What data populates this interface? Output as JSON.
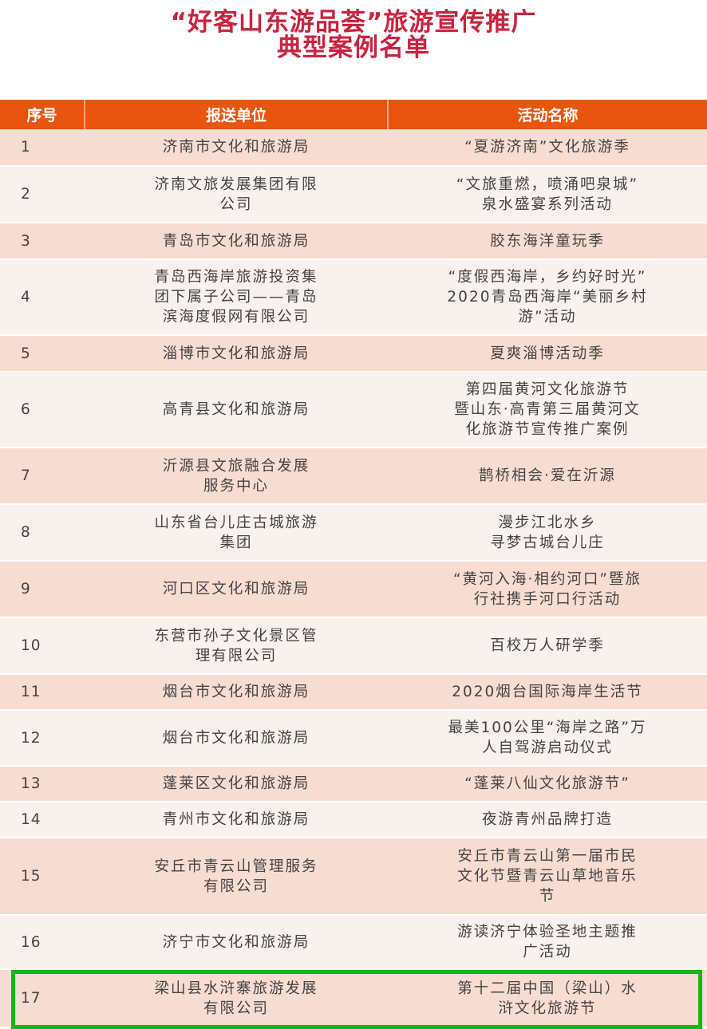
{
  "title_line1": "“好客山东游品荟”旅游宣传推广",
  "title_line2": "典型案例名单",
  "headers": [
    "序号",
    "报送单位",
    "活动名称"
  ],
  "highlight_color": "#18b51b",
  "header_color": "#e8550e",
  "rows": [
    {
      "no": "1",
      "unit": "济南市文化和旅游局",
      "activity": "“夏游济南”文化旅游季"
    },
    {
      "no": "2",
      "unit": "济南文旅发展集团有限\n公司",
      "activity": "“文旅重燃，喷涌吧泉城”\n泉水盛宴系列活动"
    },
    {
      "no": "3",
      "unit": "青岛市文化和旅游局",
      "activity": "胶东海洋童玩季"
    },
    {
      "no": "4",
      "unit": "青岛西海岸旅游投资集\n团下属子公司——青岛\n滨海度假网有限公司",
      "activity": "“度假西海岸，乡约好时光”\n2020青岛西海岸“美丽乡村\n游”活动"
    },
    {
      "no": "5",
      "unit": "淄博市文化和旅游局",
      "activity": "夏爽淄博活动季"
    },
    {
      "no": "6",
      "unit": "高青县文化和旅游局",
      "activity": "第四届黄河文化旅游节\n暨山东·高青第三届黄河文\n化旅游节宣传推广案例"
    },
    {
      "no": "7",
      "unit": "沂源县文旅融合发展\n服务中心",
      "activity": "鹊桥相会·爱在沂源"
    },
    {
      "no": "8",
      "unit": "山东省台儿庄古城旅游\n集团",
      "activity": "漫步江北水乡\n寻梦古城台儿庄"
    },
    {
      "no": "9",
      "unit": "河口区文化和旅游局",
      "activity": "“黄河入海·相约河口”暨旅\n行社携手河口行活动"
    },
    {
      "no": "10",
      "unit": "东营市孙子文化景区管\n理有限公司",
      "activity": "百校万人研学季"
    },
    {
      "no": "11",
      "unit": "烟台市文化和旅游局",
      "activity": "2020烟台国际海岸生活节"
    },
    {
      "no": "12",
      "unit": "烟台市文化和旅游局",
      "activity": "最美100公里“海岸之路”万\n人自驾游启动仪式"
    },
    {
      "no": "13",
      "unit": "蓬莱区文化和旅游局",
      "activity": "“蓬莱八仙文化旅游节”"
    },
    {
      "no": "14",
      "unit": "青州市文化和旅游局",
      "activity": "夜游青州品牌打造"
    },
    {
      "no": "15",
      "unit": "安丘市青云山管理服务\n有限公司",
      "activity": "安丘市青云山第一届市民\n文化节暨青云山草地音乐\n节"
    },
    {
      "no": "16",
      "unit": "济宁市文化和旅游局",
      "activity": "游读济宁体验圣地主题推\n广活动"
    },
    {
      "no": "17",
      "unit": "梁山县水浒寨旅游发展\n有限公司",
      "activity": "第十二届中国（梁山）水\n浒文化旅游节"
    }
  ]
}
